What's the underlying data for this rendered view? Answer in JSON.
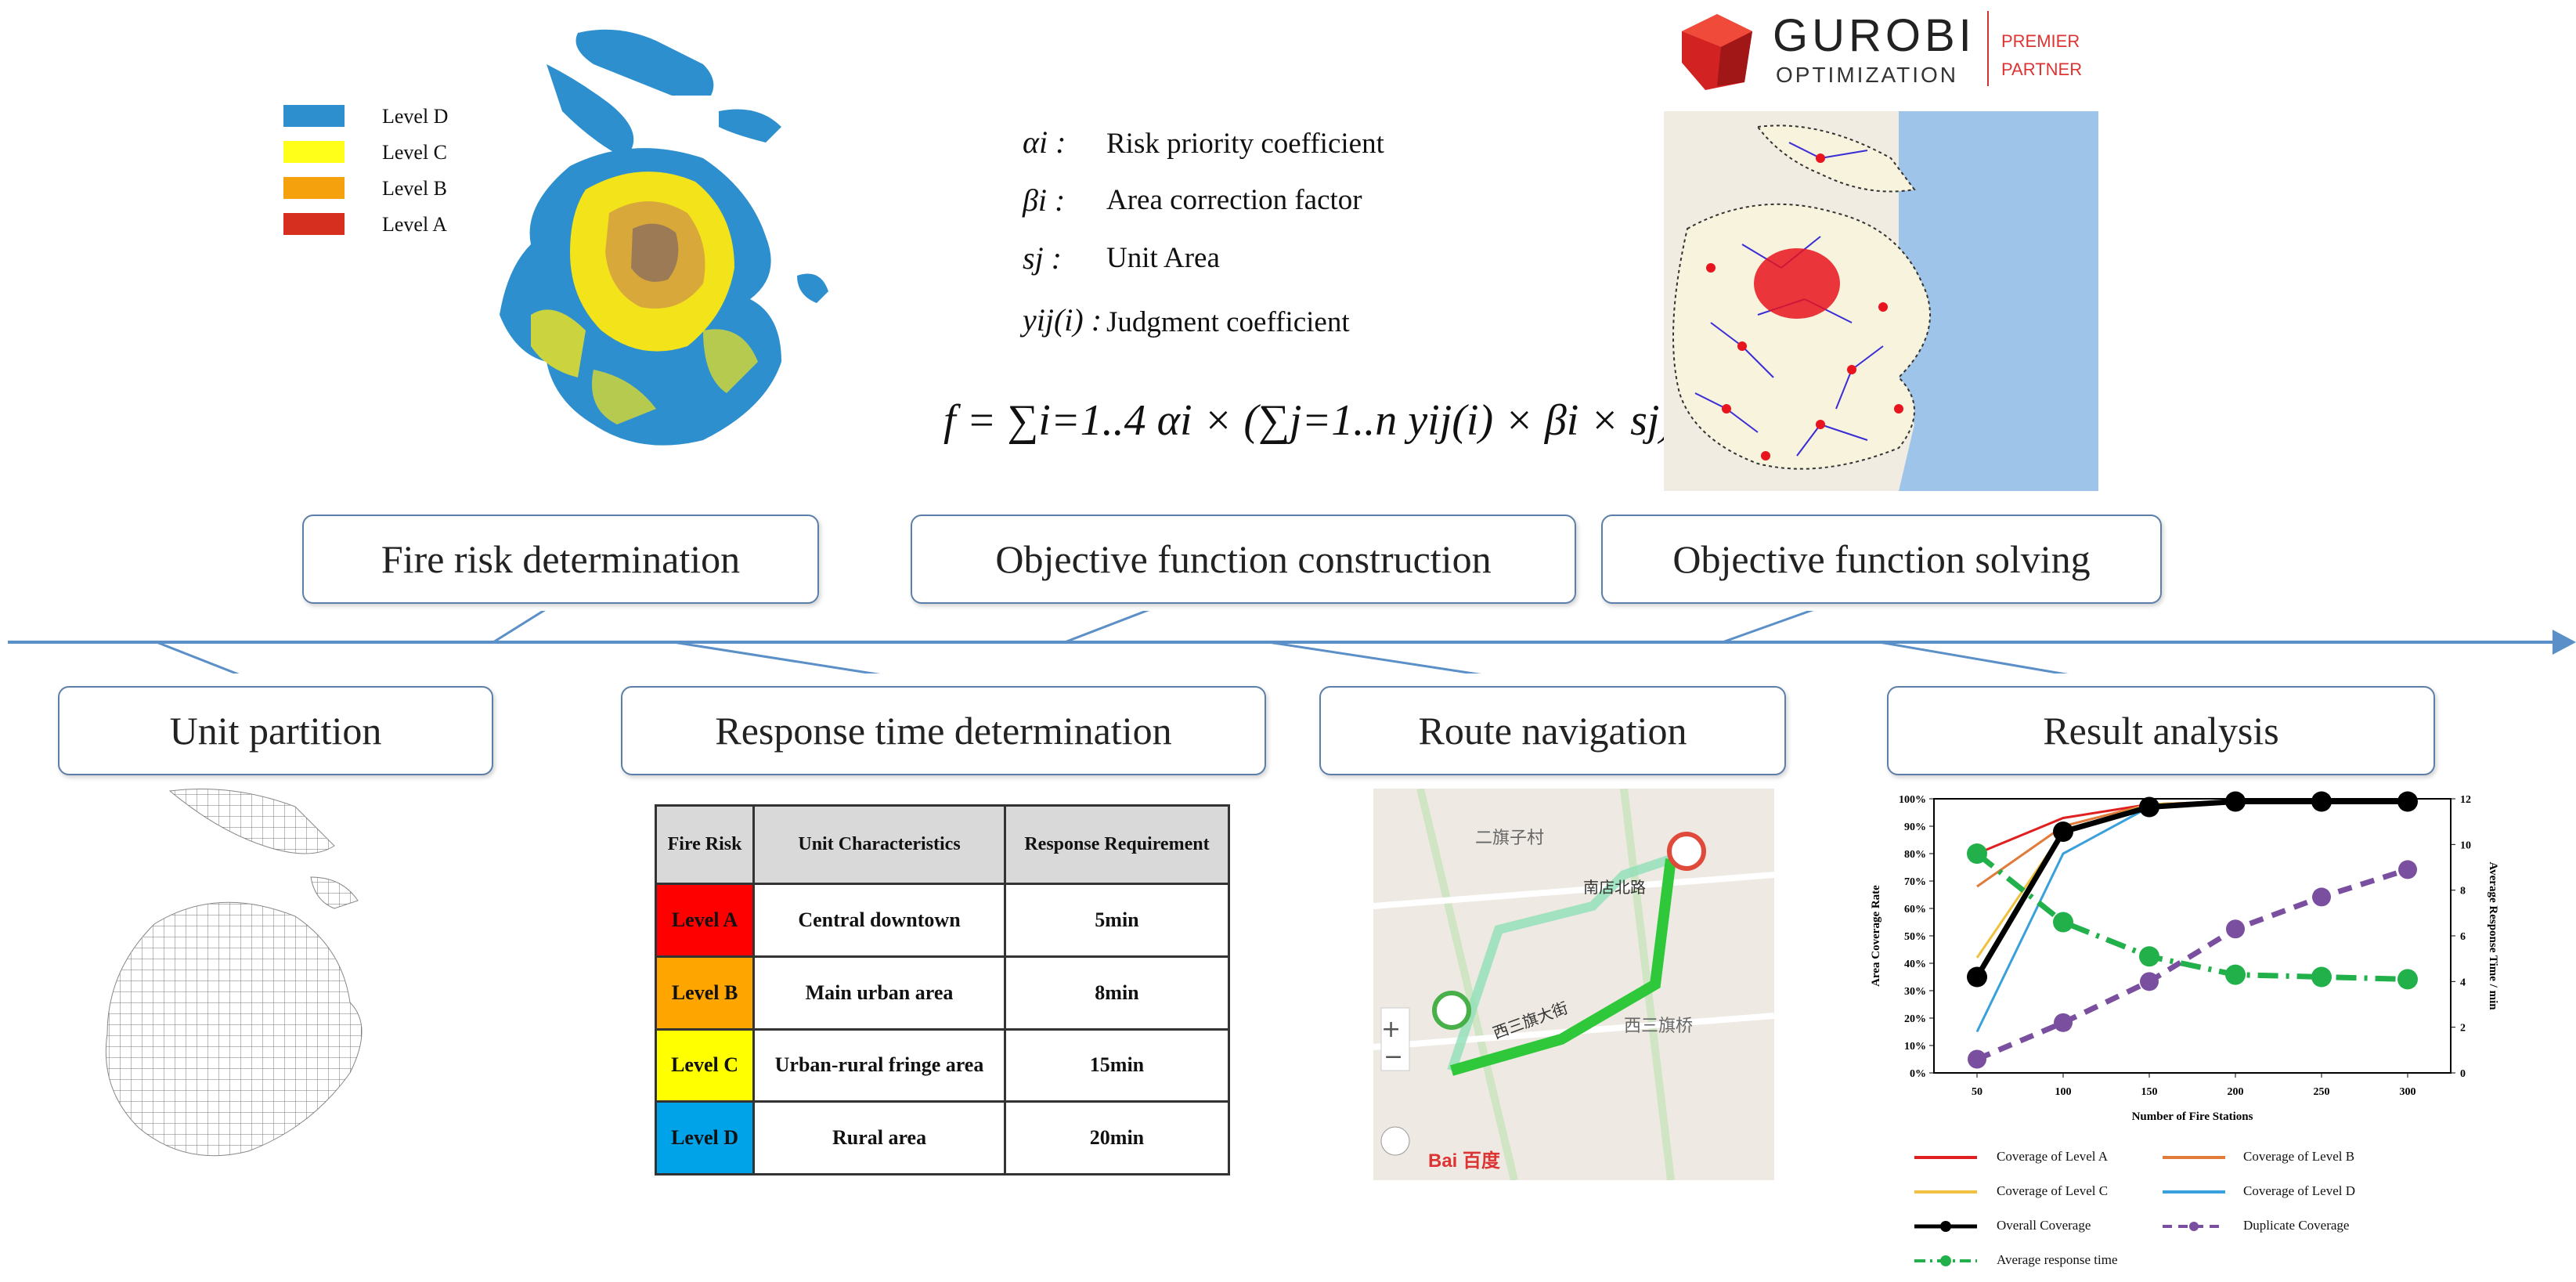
{
  "map_legend": [
    {
      "label": "Level D",
      "color": "#2e8fcf"
    },
    {
      "label": "Level C",
      "color": "#ffff1a"
    },
    {
      "label": "Level B",
      "color": "#f5a10d"
    },
    {
      "label": "Level A",
      "color": "#d62e1f"
    }
  ],
  "definitions": [
    {
      "symbol": "αi :",
      "text": "Risk priority coefficient"
    },
    {
      "symbol": "βi :",
      "text": "Area correction factor"
    },
    {
      "symbol": "sj :",
      "text": "Unit Area"
    },
    {
      "symbol": "yij(i) :",
      "text": "Judgment coefficient"
    }
  ],
  "formula": "f = ∑i=1..4 αi × (∑j=1..n yij(i) × βi × sj)",
  "gurobi": {
    "brand": "GUROBI",
    "sub": "OPTIMIZATION",
    "tag1": "PREMIER",
    "tag2": "PARTNER"
  },
  "top_steps": [
    "Fire  risk determination",
    "Objective  function  construction",
    "Objective function solving"
  ],
  "bottom_steps": [
    "Unit partition",
    "Response  time determination",
    "Route navigation",
    "Result analysis"
  ],
  "response_table": {
    "headers": [
      "Fire Risk",
      "Unit Characteristics",
      "Response Requirement"
    ],
    "rows": [
      {
        "risk": "Level A",
        "color": "#ff0000",
        "unit": "Central downtown",
        "req": "5min"
      },
      {
        "risk": "Level B",
        "color": "#ffa500",
        "unit": "Main urban area",
        "req": "8min"
      },
      {
        "risk": "Level C",
        "color": "#ffff00",
        "unit": "Urban-rural fringe area",
        "req": "15min"
      },
      {
        "risk": "Level D",
        "color": "#00a2e8",
        "unit": "Rural area",
        "req": "20min"
      }
    ]
  },
  "route_map": {
    "village": "二旗子村",
    "road1": "南店北路",
    "road2": "西三旗大街",
    "place": "西三旗桥",
    "brand": "Bai 百度"
  },
  "chart_data": {
    "type": "line",
    "title": "",
    "xlabel": "Number  of Fire Stations",
    "ylabel": "Area Coverage Rate",
    "y2label": "Average Response Time / min",
    "x": [
      50,
      100,
      150,
      200,
      250,
      300
    ],
    "ylim": [
      0,
      100
    ],
    "y2lim": [
      0,
      12
    ],
    "yticks": [
      "0%",
      "10%",
      "20%",
      "30%",
      "40%",
      "50%",
      "60%",
      "70%",
      "80%",
      "90%",
      "100%"
    ],
    "y2ticks": [
      "0",
      "2",
      "4",
      "6",
      "8",
      "10",
      "12"
    ],
    "series": [
      {
        "name": "Coverage of Level A",
        "color": "#e02020",
        "axis": "left",
        "dash": false,
        "marker": false,
        "values": [
          80,
          93,
          98,
          99,
          99,
          99
        ]
      },
      {
        "name": "Coverage of Level B",
        "color": "#e07b39",
        "axis": "left",
        "dash": false,
        "marker": false,
        "values": [
          68,
          90,
          98,
          99,
          99,
          99
        ]
      },
      {
        "name": "Coverage of Level C",
        "color": "#f0c040",
        "axis": "left",
        "dash": false,
        "marker": false,
        "values": [
          42,
          88,
          98,
          99,
          99,
          99
        ]
      },
      {
        "name": "Coverage of Level D",
        "color": "#3aa0dc",
        "axis": "left",
        "dash": false,
        "marker": false,
        "values": [
          15,
          80,
          97,
          99,
          99,
          99
        ]
      },
      {
        "name": "Overall Coverage",
        "color": "#000000",
        "axis": "left",
        "dash": false,
        "marker": true,
        "values": [
          35,
          88,
          97,
          99,
          99,
          99
        ]
      },
      {
        "name": "Duplicate Coverage",
        "color": "#7a4fa0",
        "axis": "right",
        "dash": true,
        "marker": true,
        "values": [
          0.6,
          2.2,
          4.0,
          6.3,
          7.7,
          8.9
        ]
      },
      {
        "name": "Average response time",
        "color": "#22b04a",
        "axis": "right",
        "dash": true,
        "marker": true,
        "values": [
          9.6,
          6.6,
          5.1,
          4.3,
          4.2,
          4.1
        ]
      }
    ]
  }
}
